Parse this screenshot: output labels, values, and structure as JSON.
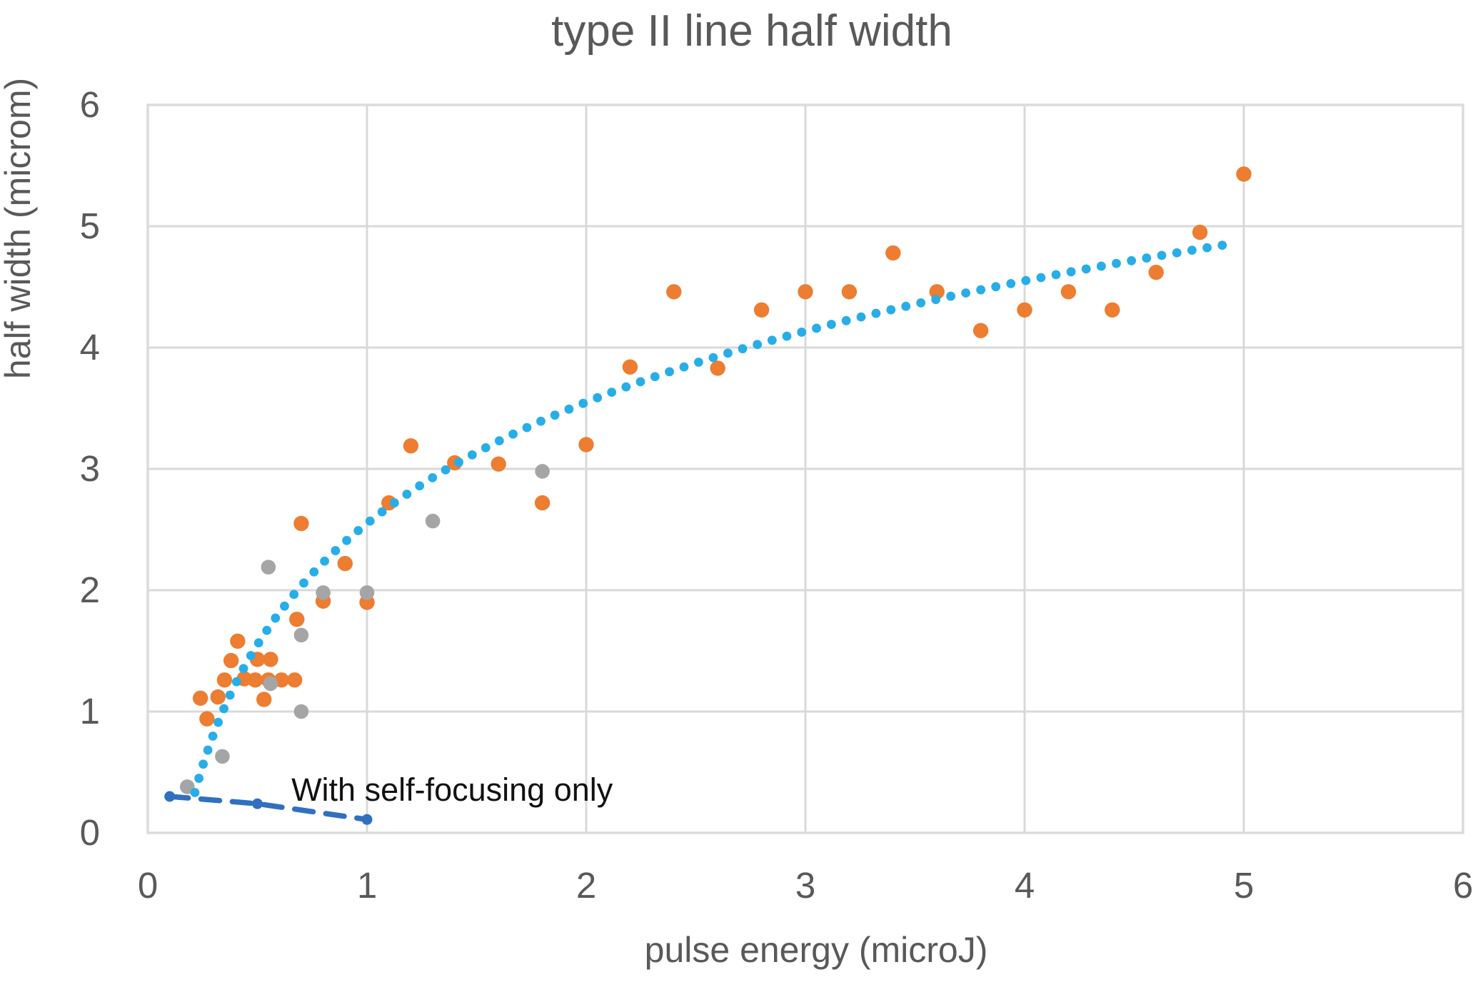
{
  "title": "type II line half width",
  "axes": {
    "x": {
      "label": "pulse energy (microJ)",
      "min": 0,
      "max": 6,
      "ticks": [
        0,
        1,
        2,
        3,
        4,
        5,
        6
      ]
    },
    "y": {
      "label": "half width (microm)",
      "min": 0,
      "max": 6,
      "ticks": [
        0,
        1,
        2,
        3,
        4,
        5,
        6
      ]
    }
  },
  "annotation": {
    "text": "With self-focusing only",
    "x": 0.655,
    "y_baseline": 0.265
  },
  "colors": {
    "orange": "#ED7D31",
    "gray": "#A5A5A5",
    "trend_cyan": "#27AEE8",
    "self_focus_blue": "#3070C0",
    "gridline": "#D9D9D9",
    "plot_border": "#DBDBDB",
    "text_gray": "#595959",
    "annotation_black": "#111111"
  },
  "chart_data": {
    "type": "scatter",
    "xlabel": "pulse energy (microJ)",
    "ylabel": "half width (microm)",
    "title": "type II line half width",
    "xlim": [
      0,
      6
    ],
    "ylim": [
      0,
      6
    ],
    "grid": true,
    "legend": "none",
    "series": [
      {
        "name": "orange-measurements",
        "color": "#ED7D31",
        "marker_radius": 10.7,
        "points": [
          [
            0.24,
            1.11
          ],
          [
            0.27,
            0.94
          ],
          [
            0.32,
            1.12
          ],
          [
            0.35,
            1.26
          ],
          [
            0.38,
            1.42
          ],
          [
            0.41,
            1.58
          ],
          [
            0.44,
            1.27
          ],
          [
            0.49,
            1.26
          ],
          [
            0.5,
            1.43
          ],
          [
            0.55,
            1.26
          ],
          [
            0.56,
            1.43
          ],
          [
            0.61,
            1.26
          ],
          [
            0.67,
            1.26
          ],
          [
            0.53,
            1.1
          ],
          [
            0.68,
            1.76
          ],
          [
            0.7,
            2.55
          ],
          [
            0.8,
            1.91
          ],
          [
            0.9,
            2.22
          ],
          [
            1.0,
            1.9
          ],
          [
            1.1,
            2.72
          ],
          [
            1.2,
            3.19
          ],
          [
            1.4,
            3.05
          ],
          [
            1.6,
            3.04
          ],
          [
            1.8,
            2.72
          ],
          [
            2.0,
            3.2
          ],
          [
            2.2,
            3.84
          ],
          [
            2.4,
            4.46
          ],
          [
            2.6,
            3.83
          ],
          [
            2.8,
            4.31
          ],
          [
            3.0,
            4.46
          ],
          [
            3.2,
            4.46
          ],
          [
            3.4,
            4.78
          ],
          [
            3.6,
            4.46
          ],
          [
            3.8,
            4.14
          ],
          [
            4.0,
            4.31
          ],
          [
            4.2,
            4.46
          ],
          [
            4.4,
            4.31
          ],
          [
            4.6,
            4.62
          ],
          [
            4.8,
            4.95
          ],
          [
            5.0,
            5.43
          ]
        ]
      },
      {
        "name": "gray-measurements",
        "color": "#A5A5A5",
        "marker_radius": 10.3,
        "points": [
          [
            0.18,
            0.38
          ],
          [
            0.34,
            0.63
          ],
          [
            0.56,
            1.23
          ],
          [
            0.55,
            2.19
          ],
          [
            0.7,
            1.63
          ],
          [
            0.7,
            1.0
          ],
          [
            0.8,
            1.98
          ],
          [
            1.0,
            1.98
          ],
          [
            1.3,
            2.57
          ],
          [
            1.8,
            2.98
          ]
        ]
      },
      {
        "name": "with-self-focusing-only",
        "color": "#3070C0",
        "style": "dashed-line-with-markers",
        "marker_radius": 7.5,
        "points": [
          [
            0.1,
            0.3
          ],
          [
            0.5,
            0.24
          ],
          [
            1.0,
            0.11
          ]
        ]
      }
    ],
    "trendline": {
      "name": "dotted-trend",
      "color": "#27AEE8",
      "style": "dotted",
      "formula": "w = 2.55 + 1.4427*ln(E)",
      "a": 2.55,
      "b": 1.4427,
      "domain": [
        0.215,
        4.97
      ],
      "dot_radius": 6.4,
      "dot_spacing_px": 21.5
    }
  }
}
